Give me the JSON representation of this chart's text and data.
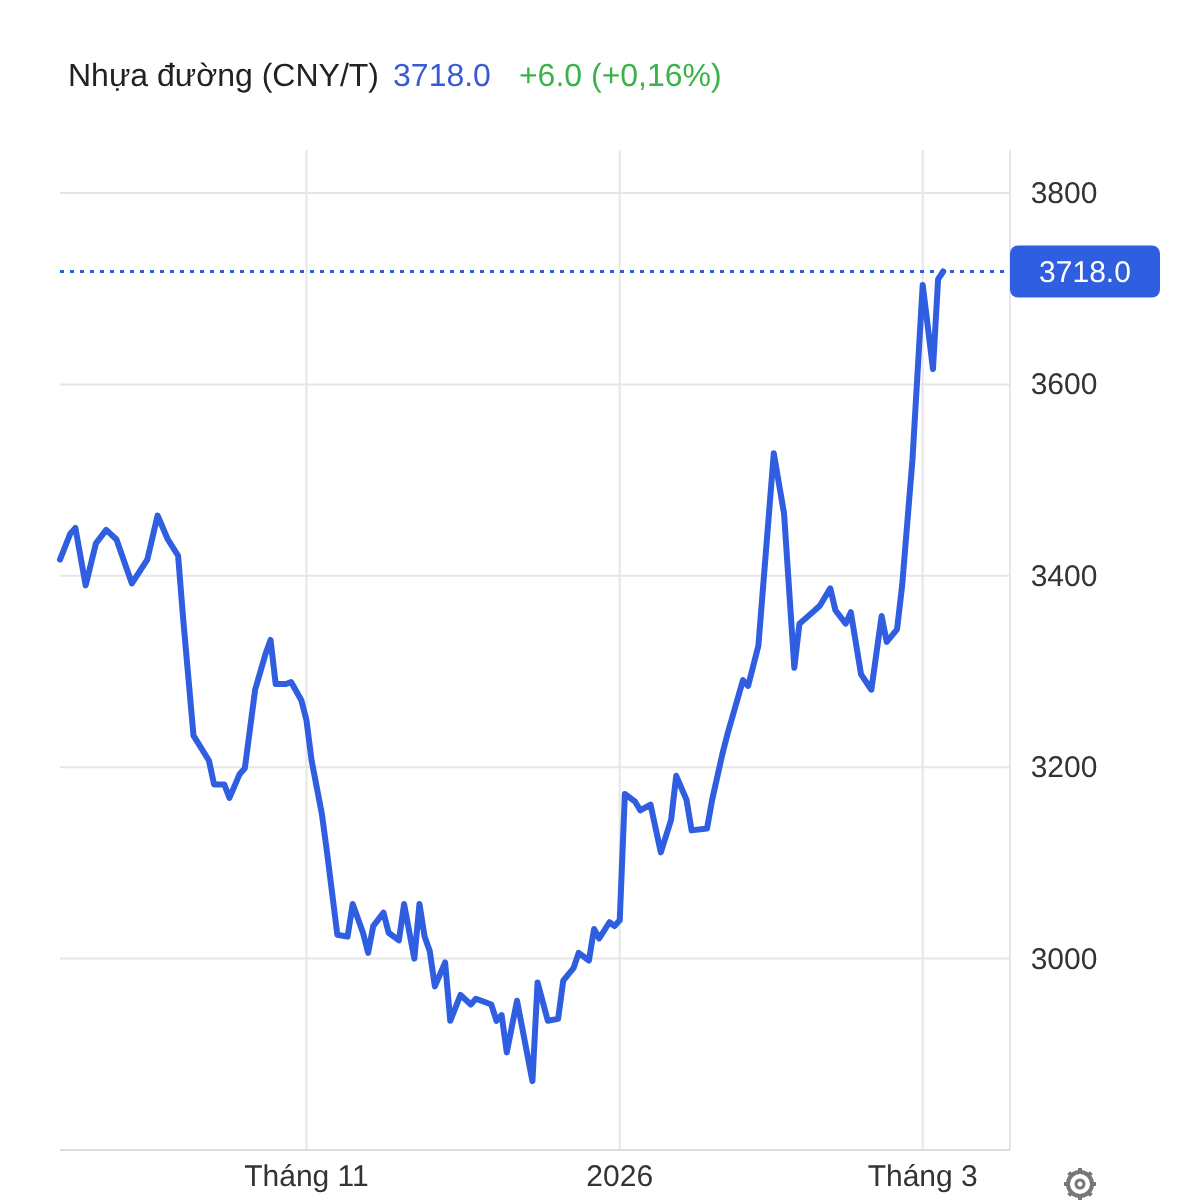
{
  "chart_data": {
    "type": "line",
    "title": "Nhựa đường (CNY/T)",
    "annotations": [
      "3718.0",
      "+6.0 (+0,16%)"
    ],
    "x": [
      "2025-09-14",
      "2025-09-16",
      "2025-09-17",
      "2025-09-19",
      "2025-09-21",
      "2025-09-23",
      "2025-09-25",
      "2025-09-28",
      "2025-10-01",
      "2025-10-03",
      "2025-10-05",
      "2025-10-07",
      "2025-10-08",
      "2025-10-10",
      "2025-10-13",
      "2025-10-14",
      "2025-10-16",
      "2025-10-17",
      "2025-10-19",
      "2025-10-20",
      "2025-10-22",
      "2025-10-24",
      "2025-10-25",
      "2025-10-26",
      "2025-10-28",
      "2025-10-29",
      "2025-10-31",
      "2025-11-01",
      "2025-11-02",
      "2025-11-04",
      "2025-11-05",
      "2025-11-07",
      "2025-11-09",
      "2025-11-10",
      "2025-11-12",
      "2025-11-13",
      "2025-11-14",
      "2025-11-16",
      "2025-11-17",
      "2025-11-19",
      "2025-11-20",
      "2025-11-22",
      "2025-11-23",
      "2025-11-24",
      "2025-11-25",
      "2025-11-26",
      "2025-11-28",
      "2025-11-29",
      "2025-12-01",
      "2025-12-03",
      "2025-12-04",
      "2025-12-07",
      "2025-12-08",
      "2025-12-09",
      "2025-12-10",
      "2025-12-12",
      "2025-12-15",
      "2025-12-16",
      "2025-12-18",
      "2025-12-20",
      "2025-12-21",
      "2025-12-23",
      "2025-12-24",
      "2025-12-26",
      "2025-12-27",
      "2025-12-28",
      "2025-12-30",
      "2025-12-31",
      "2026-01-01",
      "2026-01-02",
      "2026-01-04",
      "2026-01-05",
      "2026-01-07",
      "2026-01-09",
      "2026-01-11",
      "2026-01-12",
      "2026-01-14",
      "2026-01-15",
      "2026-01-18",
      "2026-01-19",
      "2026-01-21",
      "2026-01-22",
      "2026-01-25",
      "2026-01-26",
      "2026-01-28",
      "2026-01-31",
      "2026-02-02",
      "2026-02-04",
      "2026-02-05",
      "2026-02-08",
      "2026-02-09",
      "2026-02-11",
      "2026-02-12",
      "2026-02-14",
      "2026-02-15",
      "2026-02-17",
      "2026-02-19",
      "2026-02-21",
      "2026-02-22",
      "2026-02-24",
      "2026-02-25",
      "2026-02-27",
      "2026-03-01",
      "2026-03-03",
      "2026-03-04",
      "2026-03-05"
    ],
    "series": [
      {
        "color": "#2f5fe0",
        "values": [
          3417,
          3444,
          3450,
          3390,
          3434,
          3448,
          3438,
          3392,
          3417,
          3463,
          3438,
          3421,
          3354,
          3233,
          3207,
          3182,
          3182,
          3168,
          3193,
          3199,
          3281,
          3318,
          3333,
          3287,
          3287,
          3289,
          3270,
          3249,
          3207,
          3151,
          3111,
          3025,
          3023,
          3057,
          3027,
          3006,
          3034,
          3048,
          3027,
          3019,
          3057,
          3000,
          3057,
          3023,
          3008,
          2971,
          2996,
          2935,
          2962,
          2952,
          2958,
          2952,
          2935,
          2941,
          2902,
          2956,
          2872,
          2975,
          2935,
          2937,
          2977,
          2990,
          3006,
          2998,
          3031,
          3021,
          3038,
          3034,
          3040,
          3172,
          3164,
          3155,
          3161,
          3111,
          3145,
          3191,
          3166,
          3134,
          3136,
          3166,
          3214,
          3235,
          3291,
          3285,
          3327,
          3528,
          3465,
          3304,
          3350,
          3364,
          3369,
          3387,
          3364,
          3350,
          3362,
          3297,
          3281,
          3358,
          3331,
          3344,
          3390,
          3521,
          3704,
          3616,
          3710,
          3718
        ]
      }
    ],
    "xlim": [
      "2025-09-14",
      "2026-03-18"
    ],
    "xticks": [
      {
        "value": "2025-11-01",
        "label": "Tháng 11"
      },
      {
        "value": "2026-01-01",
        "label": "2026"
      },
      {
        "value": "2026-03-01",
        "label": "Tháng 3"
      }
    ],
    "ylim": [
      2800,
      3845
    ],
    "yticks": [
      3000,
      3200,
      3400,
      3600,
      3800
    ],
    "grid": true,
    "marker": "none",
    "line_style": "solid",
    "ref_lines": [
      {
        "axis": "y",
        "value": 3718,
        "label": "3718.0",
        "color": "#2f5fe0",
        "line_style": "dotted"
      }
    ]
  }
}
